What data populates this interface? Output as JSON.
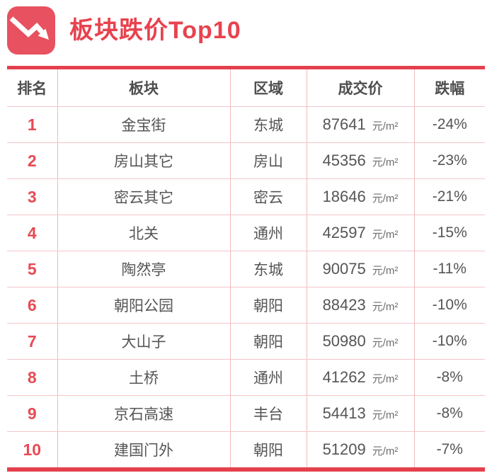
{
  "header": {
    "title": "板块跌价Top10"
  },
  "colors": {
    "accent_red": "#E8424E",
    "icon_red": "#E85160",
    "rank_red": "#E84A55",
    "thick_rule": "#E4404D",
    "divider_vertical": "#F2B9BD",
    "divider_horizontal": "#F5C6C9",
    "text_dark": "#555555",
    "text_unit": "#6E6E6E"
  },
  "table": {
    "columns": [
      "排名",
      "板块",
      "区域",
      "成交价",
      "跌幅"
    ],
    "rows": [
      {
        "rank": "1",
        "sector": "金宝街",
        "region": "东城",
        "price": "87641",
        "unit": "元/m²",
        "drop": "-24%"
      },
      {
        "rank": "2",
        "sector": "房山其它",
        "region": "房山",
        "price": "45356",
        "unit": "元/m²",
        "drop": "-23%"
      },
      {
        "rank": "3",
        "sector": "密云其它",
        "region": "密云",
        "price": "18646",
        "unit": "元/m²",
        "drop": "-21%"
      },
      {
        "rank": "4",
        "sector": "北关",
        "region": "通州",
        "price": "42597",
        "unit": "元/m²",
        "drop": "-15%"
      },
      {
        "rank": "5",
        "sector": "陶然亭",
        "region": "东城",
        "price": "90075",
        "unit": "元/m²",
        "drop": "-11%"
      },
      {
        "rank": "6",
        "sector": "朝阳公园",
        "region": "朝阳",
        "price": "88423",
        "unit": "元/m²",
        "drop": "-10%"
      },
      {
        "rank": "7",
        "sector": "大山子",
        "region": "朝阳",
        "price": "50980",
        "unit": "元/m²",
        "drop": "-10%"
      },
      {
        "rank": "8",
        "sector": "土桥",
        "region": "通州",
        "price": "41262",
        "unit": "元/m²",
        "drop": "-8%"
      },
      {
        "rank": "9",
        "sector": "京石高速",
        "region": "丰台",
        "price": "54413",
        "unit": "元/m²",
        "drop": "-8%"
      },
      {
        "rank": "10",
        "sector": "建国门外",
        "region": "朝阳",
        "price": "51209",
        "unit": "元/m²",
        "drop": "-7%"
      }
    ]
  },
  "chart_data": {
    "type": "table",
    "title": "板块跌价Top10",
    "columns": [
      "排名",
      "板块",
      "区域",
      "成交价",
      "跌幅"
    ],
    "price_unit": "元/m²",
    "rows": [
      [
        "1",
        "金宝街",
        "东城",
        87641,
        "-24%"
      ],
      [
        "2",
        "房山其它",
        "房山",
        45356,
        "-23%"
      ],
      [
        "3",
        "密云其它",
        "密云",
        18646,
        "-21%"
      ],
      [
        "4",
        "北关",
        "通州",
        42597,
        "-15%"
      ],
      [
        "5",
        "陶然亭",
        "东城",
        90075,
        "-11%"
      ],
      [
        "6",
        "朝阳公园",
        "朝阳",
        88423,
        "-10%"
      ],
      [
        "7",
        "大山子",
        "朝阳",
        50980,
        "-10%"
      ],
      [
        "8",
        "土桥",
        "通州",
        41262,
        "-8%"
      ],
      [
        "9",
        "京石高速",
        "丰台",
        54413,
        "-8%"
      ],
      [
        "10",
        "建国门外",
        "朝阳",
        51209,
        "-7%"
      ]
    ]
  }
}
